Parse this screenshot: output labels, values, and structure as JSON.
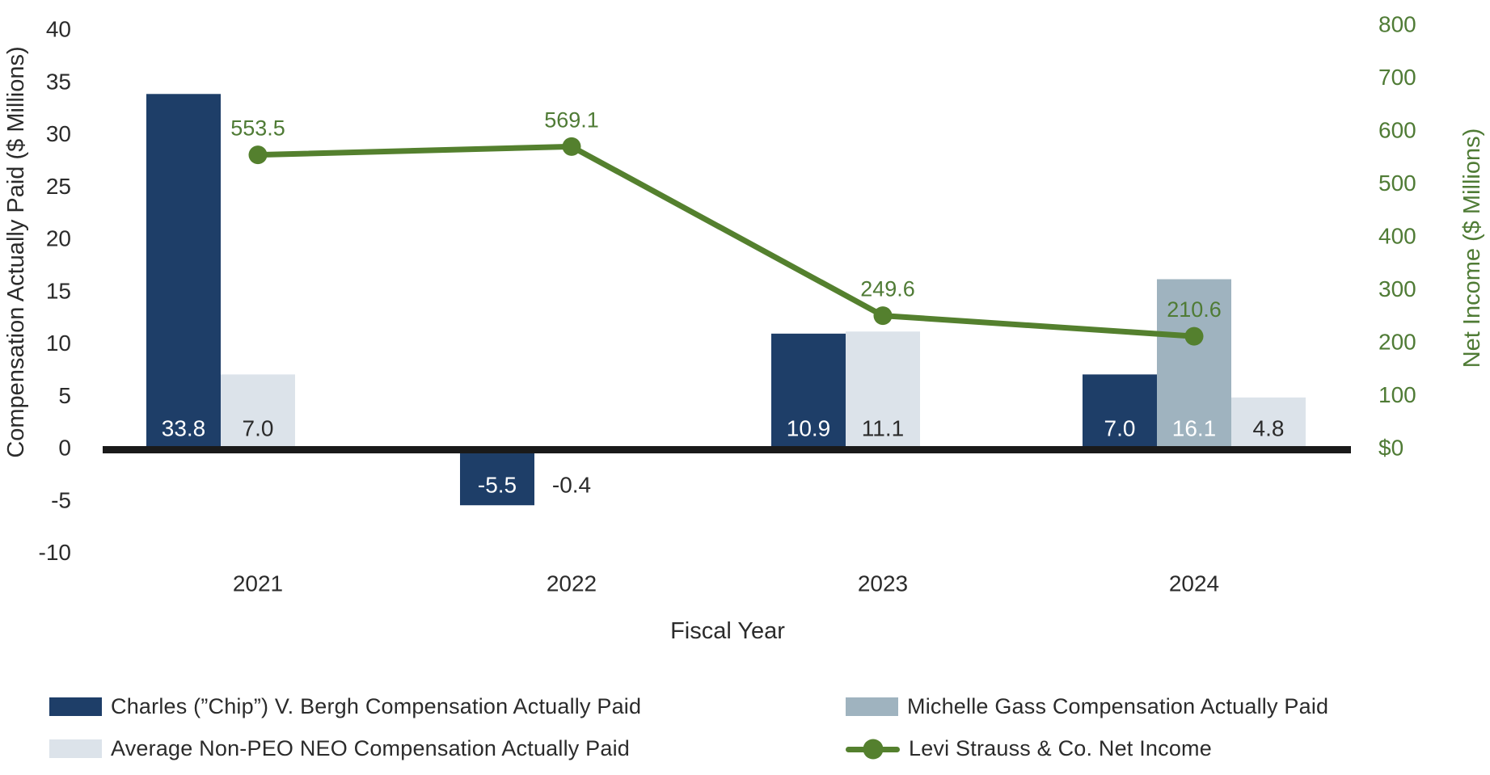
{
  "chart_data": {
    "type": "combo",
    "categories": [
      "2021",
      "2022",
      "2023",
      "2024"
    ],
    "xlabel": "Fiscal Year",
    "ylabel_left": "Compensation Actually Paid ($ Millions)",
    "ylabel_right": "Net Income ($ Millions)",
    "ylim_left": [
      -10,
      40
    ],
    "ylim_right": [
      0,
      800
    ],
    "grid": false,
    "legend_position": "bottom",
    "left_ticks": [
      {
        "label": "40",
        "value": 40
      },
      {
        "label": "35",
        "value": 35
      },
      {
        "label": "30",
        "value": 30
      },
      {
        "label": "25",
        "value": 25
      },
      {
        "label": "20",
        "value": 20
      },
      {
        "label": "15",
        "value": 15
      },
      {
        "label": "10",
        "value": 10
      },
      {
        "label": "5",
        "value": 5
      },
      {
        "label": "0",
        "value": 0
      },
      {
        "label": "-5",
        "value": -5
      },
      {
        "label": "-10",
        "value": -10
      }
    ],
    "right_ticks": [
      {
        "label": "800",
        "value": 800
      },
      {
        "label": "700",
        "value": 700
      },
      {
        "label": "600",
        "value": 600
      },
      {
        "label": "500",
        "value": 500
      },
      {
        "label": "400",
        "value": 400
      },
      {
        "label": "300",
        "value": 300
      },
      {
        "label": "200",
        "value": 200
      },
      {
        "label": "100",
        "value": 100
      },
      {
        "label": "$0",
        "value": 0
      }
    ],
    "series": [
      {
        "name": "Charles (”Chip”) V. Bergh Compensation Actually Paid",
        "type": "bar",
        "axis": "left",
        "color": "#1e3e68",
        "label_color": "#ffffff",
        "values": [
          33.8,
          -5.5,
          10.9,
          7.0
        ],
        "labels": [
          "33.8",
          "-5.5",
          "10.9",
          "7.0"
        ]
      },
      {
        "name": "Michelle Gass Compensation Actually Paid",
        "type": "bar",
        "axis": "left",
        "color": "#9fb3bf",
        "label_color": "#ffffff",
        "values": [
          null,
          null,
          null,
          16.1
        ],
        "labels": [
          null,
          null,
          null,
          "16.1"
        ]
      },
      {
        "name": "Average Non-PEO NEO Compensation Actually Paid",
        "type": "bar",
        "axis": "left",
        "color": "#dce3ea",
        "label_color": "#2b2b2b",
        "values": [
          7.0,
          -0.4,
          11.1,
          4.8
        ],
        "labels": [
          "7.0",
          "-0.4",
          "11.1",
          "4.8"
        ]
      },
      {
        "name": "Levi Strauss & Co. Net Income",
        "type": "line",
        "axis": "right",
        "color": "#54802e",
        "label_color": "#4f7b35",
        "values": [
          553.5,
          569.1,
          249.6,
          210.6
        ],
        "labels": [
          "553.5",
          "569.1",
          "249.6",
          "210.6"
        ]
      }
    ],
    "legend": [
      {
        "label": "Charles (”Chip”) V. Bergh Compensation Actually Paid",
        "swatch": "bar",
        "color": "#1e3e68"
      },
      {
        "label": "Michelle Gass Compensation Actually Paid",
        "swatch": "bar",
        "color": "#9fb3bf"
      },
      {
        "label": "Average Non-PEO NEO Compensation Actually Paid",
        "swatch": "bar",
        "color": "#dce3ea"
      },
      {
        "label": "Levi Strauss & Co. Net Income",
        "swatch": "line",
        "color": "#54802e"
      }
    ],
    "colors": {
      "bergh_navy": "#1e3e68",
      "gass_gray_blue": "#9fb3bf",
      "neo_light_gray": "#dce3ea",
      "net_income_green": "#54802e",
      "green_text": "#4f7b35",
      "axis_black": "#1a1a1a",
      "text_dark": "#2b2b2b"
    }
  }
}
